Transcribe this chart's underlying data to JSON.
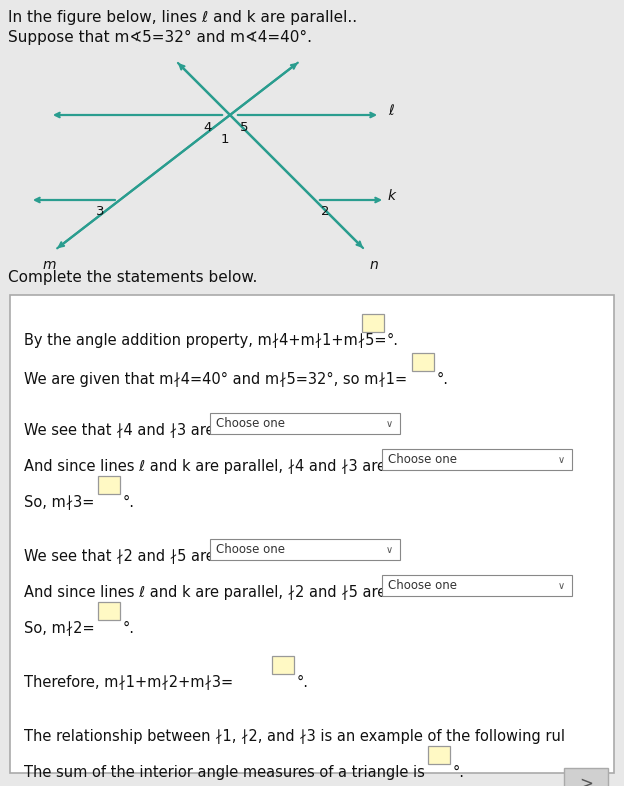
{
  "bg_color": "#e8e8e8",
  "panel_bg": "#ffffff",
  "teal": "#2a9d8f",
  "text_color": "#111111",
  "box_fill": "#fff9c4",
  "dropdown_fill": "#ffffff",
  "title1": "In the figure below, lines ℓ and k are parallel..",
  "title2": "Suppose that m∢5=32° and m∢4=40°.",
  "complete": "Complete the statements below.",
  "fig_width": 6.24,
  "fig_height": 7.86,
  "dpi": 100
}
